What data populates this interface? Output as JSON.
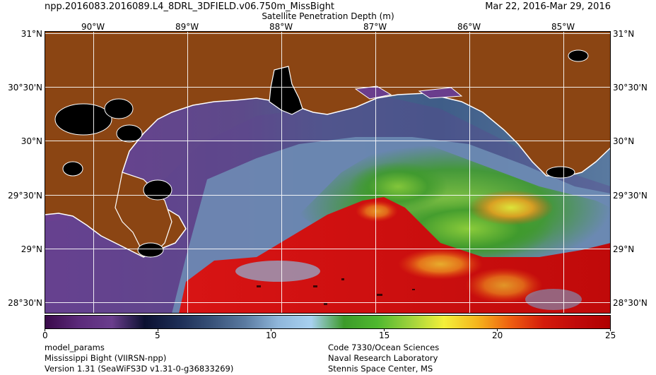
{
  "header": {
    "file_name": "npp.2016083.2016089.L4_8DRL_3DFIELD.v06.750m_MissBight",
    "date_range": "Mar 22, 2016-Mar 29, 2016",
    "product_title": "Satellite Penetration Depth (m)"
  },
  "map": {
    "lon_labels": [
      "90°W",
      "89°W",
      "88°W",
      "87°W",
      "86°W",
      "85°W"
    ],
    "lat_labels": [
      "31°N",
      "30°30'N",
      "30°N",
      "29°30'N",
      "29°N",
      "28°30'N"
    ],
    "colors": {
      "land": "#8B4513",
      "coast": "#ffffff",
      "inland_water": "#000000",
      "grid": "#ffffff"
    }
  },
  "colorbar": {
    "min": 0,
    "max": 25,
    "tick_labels": [
      "0",
      "5",
      "10",
      "15",
      "20",
      "25"
    ],
    "colors": [
      "#3a0a4a",
      "#5b2a7a",
      "#6a3d8d",
      "#0b1030",
      "#1c2d55",
      "#385178",
      "#5a7aa0",
      "#8fb6da",
      "#a8d1f0",
      "#3c9a2a",
      "#4fb82f",
      "#9fd33c",
      "#f4f03a",
      "#f5b51d",
      "#ee5e10",
      "#d41b0b",
      "#c00a0a",
      "#b00000"
    ]
  },
  "footer": {
    "left": [
      "model_params",
      "Mississippi Bight (VIIRSN-npp)",
      "Version 1.31 (SeaWiFS3D v1.31-0-g36833269)"
    ],
    "right": [
      "Code 7330/Ocean Sciences",
      "Naval Research Laboratory",
      "Stennis Space Center, MS"
    ]
  }
}
